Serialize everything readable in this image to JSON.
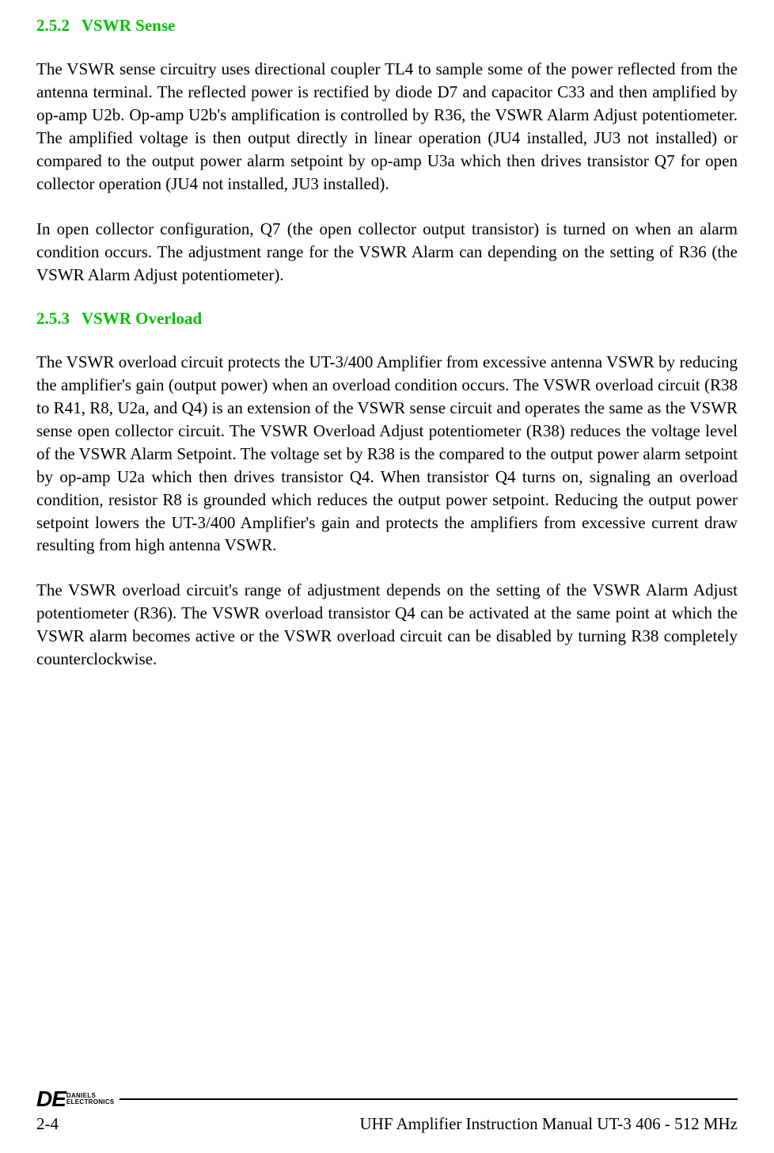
{
  "colors": {
    "heading": "#00c000",
    "body_text": "#000000",
    "background": "#ffffff",
    "rule": "#000000"
  },
  "typography": {
    "body_font": "Times New Roman",
    "body_size_pt": 16,
    "heading_size_pt": 16,
    "heading_weight": "bold",
    "logo_font": "Arial",
    "logo_de_size_pt": 21,
    "logo_sub_size_pt": 6
  },
  "sections": {
    "s1": {
      "number": "2.5.2",
      "title": "VSWR Sense",
      "p1": "The VSWR sense circuitry uses directional coupler TL4 to sample some of the power reflected from the antenna terminal.  The reflected power is rectified by diode D7 and capacitor C33 and then amplified by op-amp U2b.  Op-amp U2b's amplification is controlled by R36, the VSWR Alarm Adjust potentiometer.  The amplified voltage is then output directly in linear operation (JU4 installed, JU3 not installed) or compared to the output power alarm setpoint by op-amp U3a which then drives transistor Q7 for open collector operation (JU4 not installed, JU3 installed).",
      "p2": "In open collector configuration, Q7 (the open collector output transistor) is turned on when an alarm condition occurs.  The adjustment range for the VSWR Alarm can depending on the setting of R36 (the VSWR Alarm Adjust potentiometer)."
    },
    "s2": {
      "number": "2.5.3",
      "title": "VSWR Overload",
      "p1": "The VSWR overload circuit protects the UT-3/400 Amplifier from excessive antenna VSWR by reducing the amplifier's gain (output power) when an overload condition occurs.  The VSWR overload circuit (R38 to R41, R8, U2a, and Q4) is an extension of the VSWR sense circuit and operates the same as the VSWR sense open collector circuit.  The VSWR Overload Adjust potentiometer (R38) reduces the voltage level of the VSWR Alarm Setpoint.  The voltage set by R38 is the compared to the output power alarm setpoint by op-amp U2a which then drives transistor Q4.  When transistor Q4 turns on, signaling an overload condition, resistor R8 is grounded which reduces the output power setpoint. Reducing the output power setpoint lowers the UT-3/400 Amplifier's gain and protects the amplifiers from excessive current draw resulting from high antenna VSWR.",
      "p2": "The VSWR overload circuit's range of adjustment depends on the setting of the VSWR Alarm Adjust potentiometer (R36).  The VSWR overload transistor Q4 can be activated at the same point at which the VSWR alarm becomes active or the VSWR overload circuit can be disabled by turning R38 completely counterclockwise."
    }
  },
  "footer": {
    "logo_de": "DE",
    "logo_line1": "DANIELS",
    "logo_line2": "ELECTRONICS",
    "page_number": "2-4",
    "doc_title": "UHF Amplifier Instruction Manual UT-3 406 - 512 MHz"
  }
}
